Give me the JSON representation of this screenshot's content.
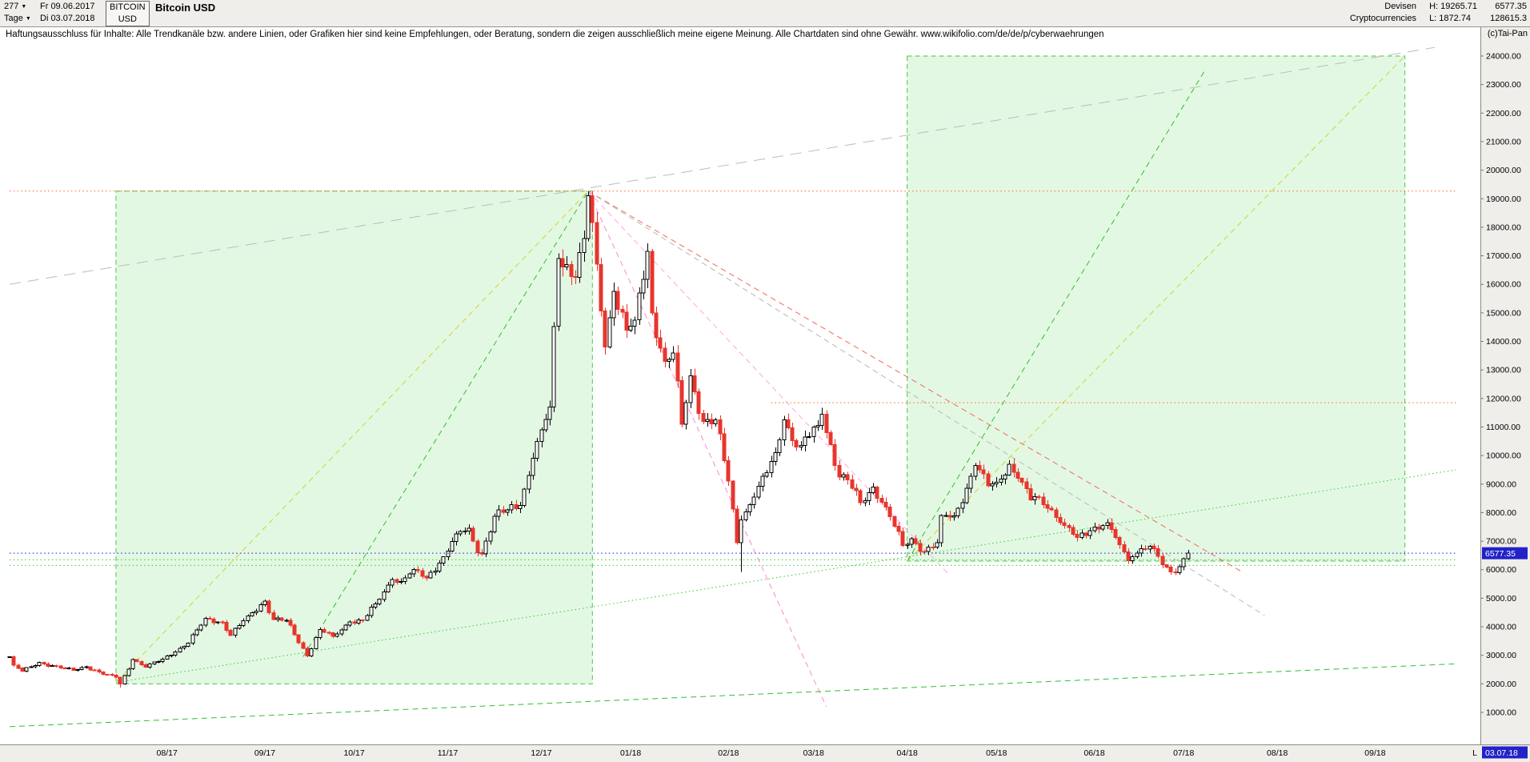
{
  "header": {
    "bars_count": "277",
    "dropdown_arrow": "▼",
    "period_label": "Tage",
    "date_from": "Fr 09.06.2017",
    "date_to": "Di 03.07.2018",
    "symbol": "BITCOIN",
    "currency": "USD",
    "title": "Bitcoin USD",
    "category_line1": "Devisen",
    "category_line2": "Cryptocurrencies",
    "high_label": "H: 19265.71",
    "low_label": "L: 1872.74",
    "last_price": "6577.35",
    "secondary_value": "128615.3",
    "copyright": "(c)Tai-Pan"
  },
  "disclaimer": "Haftungsausschluss für Inhalte: Alle Trendkanäle bzw. andere Linien, oder Grafiken hier sind keine Empfehlungen, oder Beratung, sondern die zeigen ausschließlich meine eigene Meinung. Alle Chartdaten sind ohne Gewähr.  www.wikifolio.com/de/de/p/cyberwaehrungen",
  "footer": {
    "last_bar_label": "L",
    "last_date": "03.07.18"
  },
  "chart_data": {
    "type": "candlestick",
    "title": "Bitcoin USD",
    "x_range": [
      "2017-06-09",
      "2018-09-28"
    ],
    "data_range": [
      "2017-06-09",
      "2018-07-03"
    ],
    "bars": 277,
    "high": 19265.71,
    "low": 1872.74,
    "last_close": 6577.35,
    "y_axis": {
      "min": 1000,
      "max": 24000,
      "step": 1000,
      "side": "right"
    },
    "y_ticks": [
      "24000.00",
      "23000.00",
      "22000.00",
      "21000.00",
      "20000.00",
      "19000.00",
      "18000.00",
      "17000.00",
      "16000.00",
      "15000.00",
      "14000.00",
      "13000.00",
      "12000.00",
      "11000.00",
      "10000.00",
      "9000.00",
      "8000.00",
      "7000.00",
      "6000.00",
      "5000.00",
      "4000.00",
      "3000.00",
      "2000.00",
      "1000.00"
    ],
    "x_ticks": [
      {
        "label": "08/17",
        "date": "2017-08-01"
      },
      {
        "label": "09/17",
        "date": "2017-09-01"
      },
      {
        "label": "10/17",
        "date": "2017-10-02"
      },
      {
        "label": "11/17",
        "date": "2017-11-01"
      },
      {
        "label": "12/17",
        "date": "2017-12-01"
      },
      {
        "label": "01/18",
        "date": "2018-01-01"
      },
      {
        "label": "02/18",
        "date": "2018-02-01"
      },
      {
        "label": "03/18",
        "date": "2018-03-01"
      },
      {
        "label": "04/18",
        "date": "2018-04-02"
      },
      {
        "label": "05/18",
        "date": "2018-05-01"
      },
      {
        "label": "06/18",
        "date": "2018-06-01"
      },
      {
        "label": "07/18",
        "date": "2018-07-02"
      },
      {
        "label": "08/18",
        "date": "2018-08-01"
      },
      {
        "label": "09/18",
        "date": "2018-09-03"
      }
    ],
    "anchors": [
      [
        "2017-06-09",
        2950
      ],
      [
        "2017-06-12",
        2650
      ],
      [
        "2017-06-14",
        2450
      ],
      [
        "2017-06-20",
        2750
      ],
      [
        "2017-06-27",
        2550
      ],
      [
        "2017-06-30",
        2480
      ],
      [
        "2017-07-05",
        2600
      ],
      [
        "2017-07-11",
        2330
      ],
      [
        "2017-07-14",
        2230
      ],
      [
        "2017-07-17",
        1990
      ],
      [
        "2017-07-20",
        2850
      ],
      [
        "2017-07-25",
        2580
      ],
      [
        "2017-07-31",
        2870
      ],
      [
        "2017-08-04",
        3250
      ],
      [
        "2017-08-08",
        3420
      ],
      [
        "2017-08-14",
        4300
      ],
      [
        "2017-08-18",
        4150
      ],
      [
        "2017-08-22",
        3700
      ],
      [
        "2017-08-28",
        4380
      ],
      [
        "2017-09-01",
        4900
      ],
      [
        "2017-09-05",
        4250
      ],
      [
        "2017-09-08",
        4230
      ],
      [
        "2017-09-14",
        3250
      ],
      [
        "2017-09-15",
        2980
      ],
      [
        "2017-09-20",
        3900
      ],
      [
        "2017-09-25",
        3660
      ],
      [
        "2017-09-29",
        4170
      ],
      [
        "2017-10-04",
        4220
      ],
      [
        "2017-10-09",
        4800
      ],
      [
        "2017-10-13",
        5650
      ],
      [
        "2017-10-17",
        5590
      ],
      [
        "2017-10-20",
        6000
      ],
      [
        "2017-10-25",
        5720
      ],
      [
        "2017-10-31",
        6450
      ],
      [
        "2017-11-03",
        7250
      ],
      [
        "2017-11-08",
        7450
      ],
      [
        "2017-11-10",
        6600
      ],
      [
        "2017-11-13",
        6550
      ],
      [
        "2017-11-16",
        7870
      ],
      [
        "2017-11-21",
        8100
      ],
      [
        "2017-11-24",
        8250
      ],
      [
        "2017-11-29",
        9900
      ],
      [
        "2017-12-01",
        10900
      ],
      [
        "2017-12-05",
        11700
      ],
      [
        "2017-12-07",
        16900
      ],
      [
        "2017-12-11",
        16700
      ],
      [
        "2017-12-13",
        16250
      ],
      [
        "2017-12-15",
        17600
      ],
      [
        "2017-12-18",
        19100
      ],
      [
        "2017-12-20",
        16700
      ],
      [
        "2017-12-22",
        13800
      ],
      [
        "2017-12-26",
        15750
      ],
      [
        "2017-12-29",
        14400
      ],
      [
        "2018-01-02",
        14750
      ],
      [
        "2018-01-05",
        17150
      ],
      [
        "2018-01-08",
        15000
      ],
      [
        "2018-01-11",
        13300
      ],
      [
        "2018-01-15",
        13600
      ],
      [
        "2018-01-17",
        11100
      ],
      [
        "2018-01-19",
        12800
      ],
      [
        "2018-01-24",
        11200
      ],
      [
        "2018-01-29",
        11250
      ],
      [
        "2018-02-01",
        9100
      ],
      [
        "2018-02-05",
        6950
      ],
      [
        "2018-02-06",
        7750
      ],
      [
        "2018-02-09",
        8550
      ],
      [
        "2018-02-14",
        9400
      ],
      [
        "2018-02-16",
        10100
      ],
      [
        "2018-02-20",
        11250
      ],
      [
        "2018-02-23",
        10300
      ],
      [
        "2018-02-26",
        10350
      ],
      [
        "2018-03-02",
        11050
      ],
      [
        "2018-03-05",
        11450
      ],
      [
        "2018-03-09",
        9250
      ],
      [
        "2018-03-13",
        9150
      ],
      [
        "2018-03-16",
        8350
      ],
      [
        "2018-03-21",
        8900
      ],
      [
        "2018-03-26",
        8200
      ],
      [
        "2018-03-30",
        6850
      ],
      [
        "2018-04-03",
        7080
      ],
      [
        "2018-04-06",
        6630
      ],
      [
        "2018-04-11",
        6950
      ],
      [
        "2018-04-12",
        7900
      ],
      [
        "2018-04-17",
        7890
      ],
      [
        "2018-04-20",
        8850
      ],
      [
        "2018-04-24",
        9650
      ],
      [
        "2018-04-27",
        8940
      ],
      [
        "2018-05-01",
        9070
      ],
      [
        "2018-05-04",
        9700
      ],
      [
        "2018-05-08",
        9200
      ],
      [
        "2018-05-11",
        8450
      ],
      [
        "2018-05-15",
        8550
      ],
      [
        "2018-05-18",
        8100
      ],
      [
        "2018-05-23",
        7550
      ],
      [
        "2018-05-28",
        7130
      ],
      [
        "2018-06-01",
        7500
      ],
      [
        "2018-06-06",
        7650
      ],
      [
        "2018-06-11",
        6880
      ],
      [
        "2018-06-13",
        6310
      ],
      [
        "2018-06-18",
        6740
      ],
      [
        "2018-06-21",
        6730
      ],
      [
        "2018-06-25",
        6170
      ],
      [
        "2018-06-28",
        5900
      ],
      [
        "2018-07-02",
        6380
      ],
      [
        "2018-07-03",
        6577.35
      ]
    ],
    "wick_overrides": {
      "2017-12-18": {
        "high": 19265.71
      },
      "2017-07-17": {
        "low": 1872.74
      },
      "2018-02-06": {
        "low": 5920
      }
    },
    "colors": {
      "up": "#000000",
      "down": "#e8352c",
      "price_line": "#2222c8",
      "box_fill": "rgba(128,224,128,0.22)",
      "box_border": "#46c846",
      "support_green": "#3ecc3e",
      "trend_yellow": "#d2d22e",
      "trend_pink": "#ff85d2",
      "trend_gray": "#b8b8b8",
      "resistance_red": "#ff6a3a"
    },
    "boxes": [
      {
        "x1": "2017-07-14",
        "x2": "2017-12-19",
        "p1": 2000,
        "p2": 19265.71
      },
      {
        "x1": "2018-04-02",
        "x2": "2018-09-12",
        "p1": 6300,
        "p2": 24000
      }
    ],
    "lines": [
      {
        "x1": "2017-07-14",
        "p1": 2050,
        "x2": "2017-12-18",
        "p2": 19265,
        "color": "#d2d22e",
        "style": "dash"
      },
      {
        "x1": "2017-09-14",
        "p1": 2950,
        "x2": "2017-12-18",
        "p2": 19265,
        "color": "#2fbf2f",
        "style": "dash"
      },
      {
        "x1": "2017-12-18",
        "p1": 19265,
        "x2": "2018-03-06",
        "p2": 1200,
        "color": "#ff85d2",
        "style": "dash"
      },
      {
        "x1": "2017-12-18",
        "p1": 19265,
        "x2": "2018-04-16",
        "p2": 5800,
        "color": "#ffa8df",
        "style": "dash"
      },
      {
        "x1": "2017-12-18",
        "p1": 19265,
        "x2": "2018-07-20",
        "p2": 5900,
        "color": "#f26a5a",
        "style": "dash"
      },
      {
        "x1": "2017-12-18",
        "p1": 19265,
        "x2": "2018-07-27",
        "p2": 4400,
        "color": "#b8b8b8",
        "style": "dash"
      },
      {
        "x1": "2017-06-09",
        "p1": 16000,
        "x2": "2018-09-21",
        "p2": 24300,
        "color": "#bcbcbc",
        "style": "longdash"
      },
      {
        "x1": "2017-07-14",
        "p1": 2050,
        "x2": "2018-09-28",
        "p2": 9500,
        "color": "#3ecc3e",
        "style": "dot"
      },
      {
        "x1": "2017-06-09",
        "p1": 500,
        "x2": "2018-09-28",
        "p2": 2700,
        "color": "#2fbf2f",
        "style": "dash"
      },
      {
        "x1": "2018-04-02",
        "p1": 6300,
        "x2": "2018-07-09",
        "p2": 23500,
        "color": "#2fbf2f",
        "style": "dash"
      },
      {
        "x1": "2018-04-02",
        "p1": 6300,
        "x2": "2018-09-12",
        "p2": 24000,
        "color": "#d2d22e",
        "style": "dash"
      }
    ],
    "h_lines": [
      {
        "price": 19265.71,
        "color": "#ff6a3a",
        "style": "dot",
        "from": "2017-06-09",
        "to": "2018-09-28"
      },
      {
        "price": 11850,
        "color": "#ff6a3a",
        "style": "dot",
        "from": "2018-02-15",
        "to": "2018-09-28"
      },
      {
        "price": 6577.35,
        "color": "#2222c8",
        "style": "dot",
        "from": "2017-06-09",
        "to": "2018-09-28"
      },
      {
        "price": 6350,
        "color": "#3ecc3e",
        "style": "dot",
        "from": "2017-06-09",
        "to": "2018-09-28"
      },
      {
        "price": 6150,
        "color": "#3ecc3e",
        "style": "dot",
        "from": "2017-06-09",
        "to": "2018-09-28"
      }
    ]
  }
}
